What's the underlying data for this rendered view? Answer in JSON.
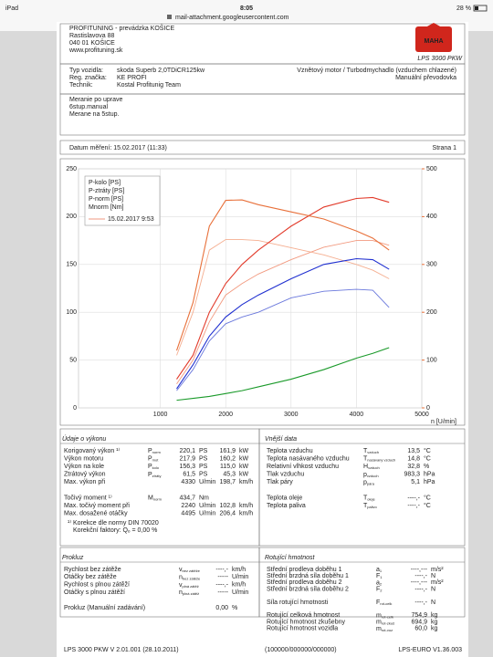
{
  "status_bar": {
    "device": "iPad",
    "time": "8:05",
    "battery": "28 %"
  },
  "url": "mail-attachment.googleusercontent.com",
  "header": {
    "company": [
      "PROFITUNING - prevádzka KOŠICE",
      "Rastislavova 88",
      "040 01 KOŠICE",
      "www.profituning.sk"
    ],
    "logo": "MAHA",
    "product": "LPS 3000 PKW"
  },
  "vehicle": {
    "rows": [
      [
        "Typ vozidla:",
        "skoda Superb 2,0TDiCR125kw"
      ],
      [
        "Reg. značka:",
        "KE PROFI"
      ],
      [
        "Technik:",
        "Kostal Profitunig Team"
      ]
    ],
    "right": [
      "Vznětový motor / Turbodmychadlo (vzduchem chlazené)",
      "Manuální převodovka"
    ]
  },
  "notes": [
    "Meranie po uprave",
    "6stup.manual",
    "Merane na 5stup."
  ],
  "date_row": {
    "date": "Datum měření: 15.02.2017 (11:33)",
    "page": "Strana 1"
  },
  "chart_data": {
    "type": "line",
    "x_label": "n [U/min]",
    "grid": true,
    "x": [
      1250,
      1500,
      1750,
      2000,
      2250,
      2500,
      3000,
      3500,
      4000,
      4250,
      4500
    ],
    "xlim": [
      0,
      5000
    ],
    "xticks": [
      1000,
      2000,
      3000,
      4000,
      5000
    ],
    "ylim": [
      0,
      250
    ],
    "yticks": [
      0,
      50,
      100,
      150,
      200,
      250
    ],
    "y2lim": [
      0,
      500
    ],
    "y2ticks": [
      0,
      100,
      200,
      300,
      400,
      500
    ],
    "y2color": "#e8703a",
    "series": [
      {
        "name": "P-kolo [PS]",
        "color": "#1f2fd0",
        "values": [
          20,
          45,
          75,
          95,
          108,
          118,
          135,
          150,
          156,
          155,
          145
        ]
      },
      {
        "name": "P-ztráty [PS]",
        "color": "#1a9a2a",
        "values": [
          8,
          10,
          12,
          15,
          18,
          22,
          30,
          40,
          52,
          57,
          63
        ]
      },
      {
        "name": "P-norm [PS]",
        "color": "#e23a2a",
        "values": [
          30,
          55,
          100,
          130,
          150,
          165,
          190,
          210,
          219,
          220,
          215
        ]
      },
      {
        "name": "Mnorm [Nm]",
        "color": "#e8703a",
        "axis": "y2",
        "values": [
          120,
          220,
          380,
          434,
          435,
          425,
          410,
          395,
          370,
          355,
          330
        ]
      }
    ],
    "comparison": {
      "label": "15.02.2017 9:53",
      "series": [
        {
          "color": "#6a78dc",
          "values": [
            18,
            40,
            70,
            88,
            95,
            100,
            115,
            122,
            124,
            123,
            105
          ]
        },
        {
          "color": "#f29a80",
          "values": [
            25,
            50,
            90,
            118,
            130,
            140,
            155,
            168,
            175,
            175,
            170
          ]
        },
        {
          "color": "#f5ae90",
          "axis": "y2",
          "values": [
            110,
            200,
            330,
            352,
            352,
            350,
            335,
            320,
            300,
            288,
            270
          ]
        }
      ]
    }
  },
  "performance": {
    "title": "Údaje o výkonu",
    "rows": [
      {
        "label": "Korigovaný výkon ¹⁾",
        "sym": {
          "base": "P",
          "sub": "norm"
        },
        "v1": "220,1",
        "u1": "PS",
        "v2": "161,9",
        "u2": "kW",
        "color": "#e0301e"
      },
      {
        "label": "Výkon motoru",
        "sym": {
          "base": "P",
          "sub": "mot"
        },
        "v1": "217,9",
        "u1": "PS",
        "v2": "160,2",
        "u2": "kW",
        "color": "#e0301e"
      },
      {
        "label": "Výkon na kole",
        "sym": {
          "base": "P",
          "sub": "kolo"
        },
        "v1": "156,3",
        "u1": "PS",
        "v2": "115,0",
        "u2": "kW",
        "color": "#1f2fd0"
      },
      {
        "label": "Ztrátový výkon",
        "sym": {
          "base": "P",
          "sub": "ztráty"
        },
        "v1": "61,5",
        "u1": "PS",
        "v2": "45,3",
        "u2": "kW",
        "color": "#1a9a2a"
      },
      {
        "label": "Max. výkon při",
        "v1": "4330",
        "u1": "U/min",
        "v2": "198,7",
        "u2": "km/h",
        "color": "#222222"
      },
      {
        "label": "Točivý moment ¹⁾",
        "sym": {
          "base": "M",
          "sub": "norm"
        },
        "v1": "434,7",
        "u1": "Nm",
        "color": "#e0301e"
      },
      {
        "label": "Max. točivý moment při",
        "v1": "2240",
        "u1": "U/min",
        "v2": "102,8",
        "u2": "km/h",
        "color": "#222222"
      },
      {
        "label": "Max. dosažené otáčky",
        "v1": "4495",
        "u1": "U/min",
        "v2": "206,4",
        "u2": "km/h",
        "color": "#222222"
      }
    ],
    "notes": [
      "¹⁾ Korekce dle normy DIN 70020",
      "Korekční faktory: Qₒ = 0,00 %"
    ]
  },
  "external": {
    "title": "Vnější data",
    "rows": [
      {
        "label": "Teplota vzduchu",
        "sym": {
          "base": "T",
          "sub": "vzduch"
        },
        "v1": "13,5",
        "u1": "°C"
      },
      {
        "label": "Teplota nasávaného vzduchu",
        "sym": {
          "base": "T",
          "sub": "nasávaný vzduch"
        },
        "v1": "14,8",
        "u1": "°C"
      },
      {
        "label": "Relativní vlhkost vzduchu",
        "sym": {
          "base": "H",
          "sub": "vzduch"
        },
        "v1": "32,8",
        "u1": "%"
      },
      {
        "label": "Tlak vzduchu",
        "sym": {
          "base": "p",
          "sub": "vzduch"
        },
        "v1": "983,3",
        "u1": "hPa"
      },
      {
        "label": "Tlak páry",
        "sym": {
          "base": "p",
          "sub": "pára"
        },
        "v1": "5,1",
        "u1": "hPa"
      },
      {
        "label": "Teplota oleje",
        "sym": {
          "base": "T",
          "sub": "oleje"
        },
        "v1": "----,-",
        "u1": "°C"
      },
      {
        "label": "Teplota paliva",
        "sym": {
          "base": "T",
          "sub": "palivo"
        },
        "v1": "----,-",
        "u1": "°C"
      }
    ]
  },
  "slip": {
    "title": "Prokluz",
    "rows": [
      {
        "label": "Rychlost bez zátěže",
        "sym": {
          "base": "v",
          "sub": "bez zátěže"
        },
        "v1": "----,-",
        "u1": "km/h"
      },
      {
        "label": "Otáčky bez zátěže",
        "sym": {
          "base": "n",
          "sub": "bez zátěže"
        },
        "v1": "-----",
        "u1": "U/min"
      },
      {
        "label": "Rychlost s plnou zátěží",
        "sym": {
          "base": "v",
          "sub": "plná zátěž"
        },
        "v1": "----,-",
        "u1": "km/h"
      },
      {
        "label": "Otáčky s plnou zátěží",
        "sym": {
          "base": "n",
          "sub": "plná zátěž"
        },
        "v1": "-----",
        "u1": "U/min"
      },
      {
        "label": "Prokluz (Manuální zadávání)",
        "v1": "0,00",
        "u1": "%"
      }
    ]
  },
  "rotating": {
    "title": "Rotující hmotnost",
    "rows": [
      {
        "label": "Střední prodleva doběhu 1",
        "sym": {
          "base": "a",
          "sub": "1"
        },
        "v1": "----,---",
        "u1": "m/s²"
      },
      {
        "label": "Střední brzdná síla doběhu 1",
        "sym": {
          "base": "F",
          "sub": "1"
        },
        "v1": "----,-",
        "u1": "N"
      },
      {
        "label": "Střední prodleva doběhu 2",
        "sym": {
          "base": "a",
          "sub": "2"
        },
        "v1": "----,---",
        "u1": "m/s²"
      },
      {
        "label": "Střední brzdná síla doběhu 2",
        "sym": {
          "base": "F",
          "sub": "2"
        },
        "v1": "----,-",
        "u1": "N"
      },
      {
        "label": "Síla rotující hmotnosti",
        "sym": {
          "base": "F",
          "sub": "rot-celk"
        },
        "v1": "----,-",
        "u1": "N"
      },
      {
        "label": "Rotující celková hmotnost",
        "sym": {
          "base": "m",
          "sub": "rot-celk"
        },
        "v1": "754,9",
        "u1": "kg"
      },
      {
        "label": "Rotující hmotnost zkušebny",
        "sym": {
          "base": "m",
          "sub": "rot-zkuš"
        },
        "v1": "694,9",
        "u1": "kg"
      },
      {
        "label": "Rotující hmotnost vozidla",
        "sym": {
          "base": "m",
          "sub": "rot-voz"
        },
        "v1": "60,0",
        "u1": "kg"
      }
    ]
  },
  "footer": [
    "LPS 3000 PKW V 2.01.001 (28.10.2011)",
    "(100000/000000/000000)",
    "LPS-EURO V1.36.003"
  ]
}
